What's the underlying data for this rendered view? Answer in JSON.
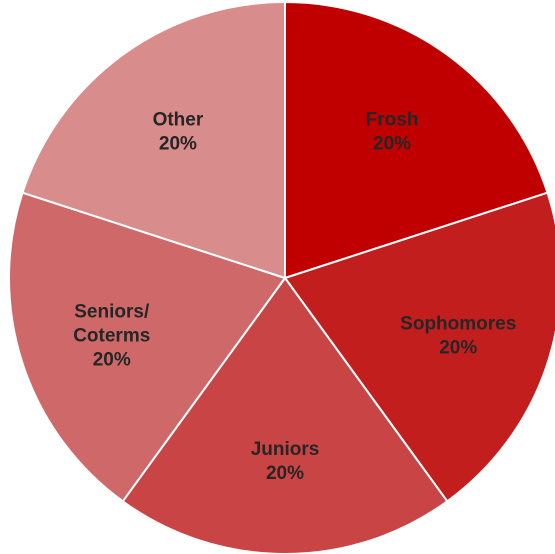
{
  "chart_data": {
    "type": "pie",
    "title": "",
    "slices": [
      {
        "label_lines": [
          "Frosh"
        ],
        "value": 20,
        "value_label": "20%",
        "color": "#C00000"
      },
      {
        "label_lines": [
          "Sophomores"
        ],
        "value": 20,
        "value_label": "20%",
        "color": "#C21E1E"
      },
      {
        "label_lines": [
          "Juniors"
        ],
        "value": 20,
        "value_label": "20%",
        "color": "#C94444"
      },
      {
        "label_lines": [
          "Seniors/",
          "Coterms"
        ],
        "value": 20,
        "value_label": "20%",
        "color": "#CF6868"
      },
      {
        "label_lines": [
          "Other"
        ],
        "value": 20,
        "value_label": "20%",
        "color": "#D98C8C"
      }
    ],
    "start_angle_deg": 0,
    "direction": "clockwise",
    "legend": "none"
  }
}
